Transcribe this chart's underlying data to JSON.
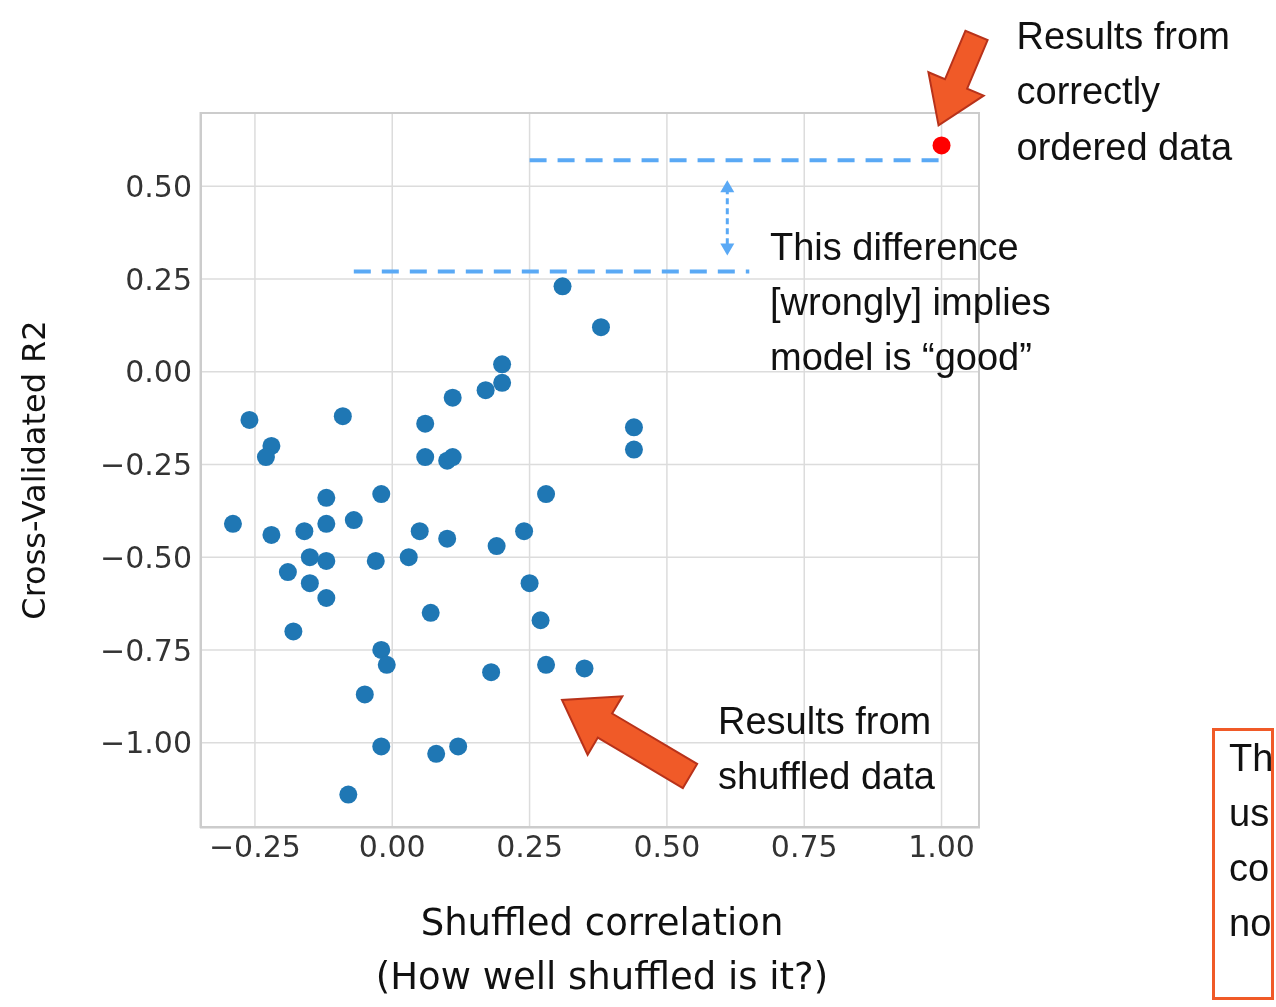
{
  "chart_data": {
    "type": "scatter",
    "xlabel": "Shuffled correlation\n(How well shuffled is it?)",
    "ylabel": "Cross-Validated R2",
    "xlim": [
      -0.35,
      1.07
    ],
    "ylim": [
      -1.23,
      0.7
    ],
    "xticks": [
      {
        "value": -0.25,
        "label": "−0.25"
      },
      {
        "value": 0,
        "label": "0.00"
      },
      {
        "value": 0.25,
        "label": "0.25"
      },
      {
        "value": 0.5,
        "label": "0.50"
      },
      {
        "value": 0.75,
        "label": "0.75"
      },
      {
        "value": 1,
        "label": "1.00"
      }
    ],
    "yticks": [
      {
        "value": -1,
        "label": "−1.00"
      },
      {
        "value": -0.75,
        "label": "−0.75"
      },
      {
        "value": -0.5,
        "label": "−0.50"
      },
      {
        "value": -0.25,
        "label": "−0.25"
      },
      {
        "value": 0,
        "label": "0.00"
      },
      {
        "value": 0.25,
        "label": "0.25"
      },
      {
        "value": 0.5,
        "label": "0.50"
      }
    ],
    "grid": true,
    "marker": "circle",
    "series": [
      {
        "color": "#1f77b4",
        "x": [
          -0.26,
          -0.22,
          -0.23,
          -0.09,
          -0.29,
          -0.22,
          -0.16,
          -0.15,
          -0.12,
          -0.12,
          -0.12,
          -0.07,
          -0.19,
          -0.15,
          -0.12,
          -0.18,
          -0.02,
          -0.03,
          0.03,
          0.05,
          0.1,
          0.07,
          0.06,
          0.06,
          0.1,
          0.11,
          0.11,
          0.17,
          0.2,
          0.2,
          0.31,
          0.38,
          0.44,
          0.44,
          0.28,
          0.24,
          0.19,
          0.25,
          0.27,
          0.28,
          0.35,
          0.18,
          -0.02,
          -0.01,
          -0.05,
          -0.02,
          0.08,
          0.12,
          -0.08
        ],
        "values": [
          -0.13,
          -0.2,
          -0.23,
          -0.12,
          -0.41,
          -0.44,
          -0.43,
          -0.5,
          -0.34,
          -0.41,
          -0.51,
          -0.4,
          -0.54,
          -0.57,
          -0.61,
          -0.7,
          -0.33,
          -0.51,
          -0.5,
          -0.43,
          -0.45,
          -0.65,
          -0.14,
          -0.23,
          -0.24,
          -0.23,
          -0.07,
          -0.05,
          0.02,
          -0.03,
          0.23,
          0.12,
          -0.15,
          -0.21,
          -0.33,
          -0.43,
          -0.47,
          -0.57,
          -0.67,
          -0.79,
          -0.8,
          -0.81,
          -0.75,
          -0.79,
          -0.87,
          -1.01,
          -1.03,
          -1.01,
          -1.14
        ]
      },
      {
        "color": "#ff0000",
        "x": [
          1.0
        ],
        "values": [
          0.61
        ]
      },
      {
        "type": "line",
        "color": "#5aa9f5",
        "line_style": "dashed",
        "marker": "none",
        "x": [
          0.25,
          1.0
        ],
        "values": [
          0.57,
          0.57
        ]
      },
      {
        "type": "line",
        "color": "#5aa9f5",
        "line_style": "dashed",
        "marker": "none",
        "x": [
          -0.07,
          0.65
        ],
        "values": [
          0.27,
          0.27
        ]
      }
    ],
    "annotations": [
      {
        "text": "Results from\ncorrectly\nordered data",
        "x": 1.0,
        "y": 0.61
      },
      "This difference\n[wrongly] implies\nmodel is “good”",
      "Results from\nshuffled data",
      "Th\nus\nco\nno"
    ]
  }
}
